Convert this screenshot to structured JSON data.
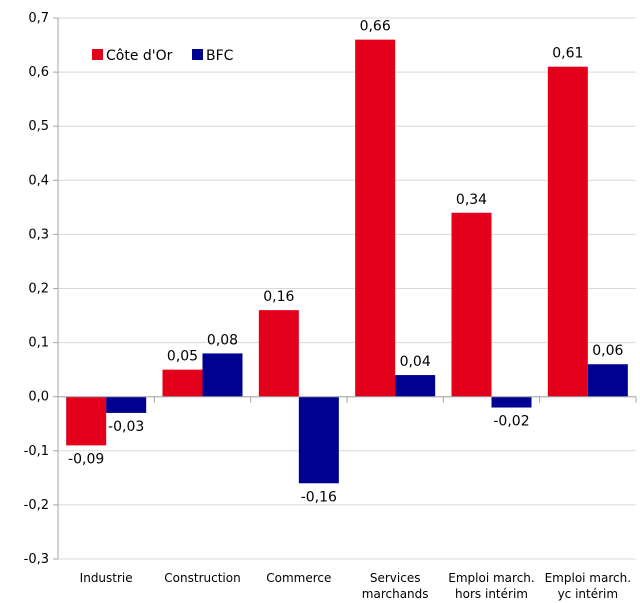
{
  "chart_data": {
    "type": "bar",
    "categories": [
      [
        "Industrie"
      ],
      [
        "Construction"
      ],
      [
        "Commerce"
      ],
      [
        "Services",
        "marchands"
      ],
      [
        "Emploi march.",
        "hors intérim"
      ],
      [
        "Emploi march.",
        "yc intérim"
      ]
    ],
    "series": [
      {
        "name": "Côte d'Or",
        "color": "#e3001b",
        "values": [
          -0.09,
          0.05,
          0.16,
          0.66,
          0.34,
          0.61
        ],
        "labels": [
          "-0,09",
          "0,05",
          "0,16",
          "0,66",
          "0,34",
          "0,61"
        ]
      },
      {
        "name": "BFC",
        "color": "#000091",
        "values": [
          -0.03,
          0.08,
          -0.16,
          0.04,
          -0.02,
          0.06
        ],
        "labels": [
          "-0,03",
          "0,08",
          "-0,16",
          "0,04",
          "-0,02",
          "0,06"
        ]
      }
    ],
    "ylim": [
      -0.3,
      0.7
    ],
    "yticks": [
      {
        "value": 0.7,
        "label": "0,7"
      },
      {
        "value": 0.6,
        "label": "0,6"
      },
      {
        "value": 0.5,
        "label": "0,5"
      },
      {
        "value": 0.4,
        "label": "0,4"
      },
      {
        "value": 0.3,
        "label": "0,3"
      },
      {
        "value": 0.2,
        "label": "0,2"
      },
      {
        "value": 0.1,
        "label": "0,1"
      },
      {
        "value": 0.0,
        "label": "0,0"
      },
      {
        "value": -0.1,
        "label": "-0,1"
      },
      {
        "value": -0.2,
        "label": "-0,2"
      },
      {
        "value": -0.3,
        "label": "-0,3"
      }
    ],
    "grid": true,
    "legend_position": "top-left"
  }
}
